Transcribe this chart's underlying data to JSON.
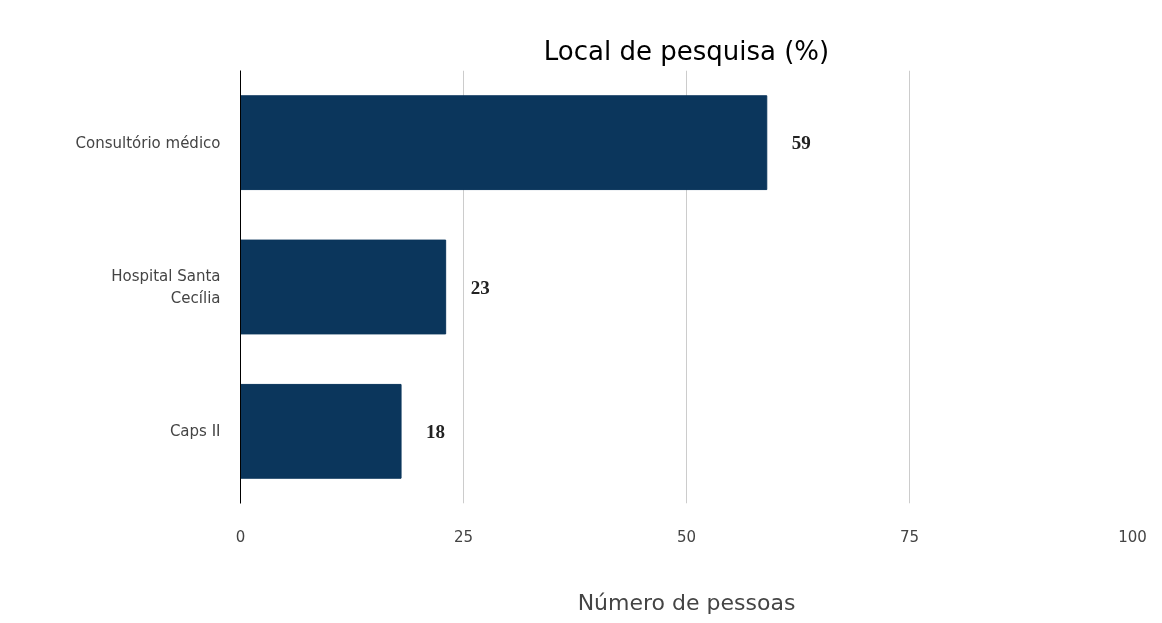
{
  "chart_data": {
    "type": "bar",
    "orientation": "horizontal",
    "title": "Local de pesquisa (%)",
    "xlabel": "Número de pessoas",
    "categories": [
      "Consultório médico",
      "Hospital Santa Cecília",
      "Caps II"
    ],
    "values": [
      59,
      23,
      18
    ],
    "color": "#0b365c",
    "data_labels": true,
    "xlim": [
      0,
      100
    ],
    "xticks": [
      0,
      25,
      50,
      75,
      100
    ],
    "grid": "x"
  }
}
